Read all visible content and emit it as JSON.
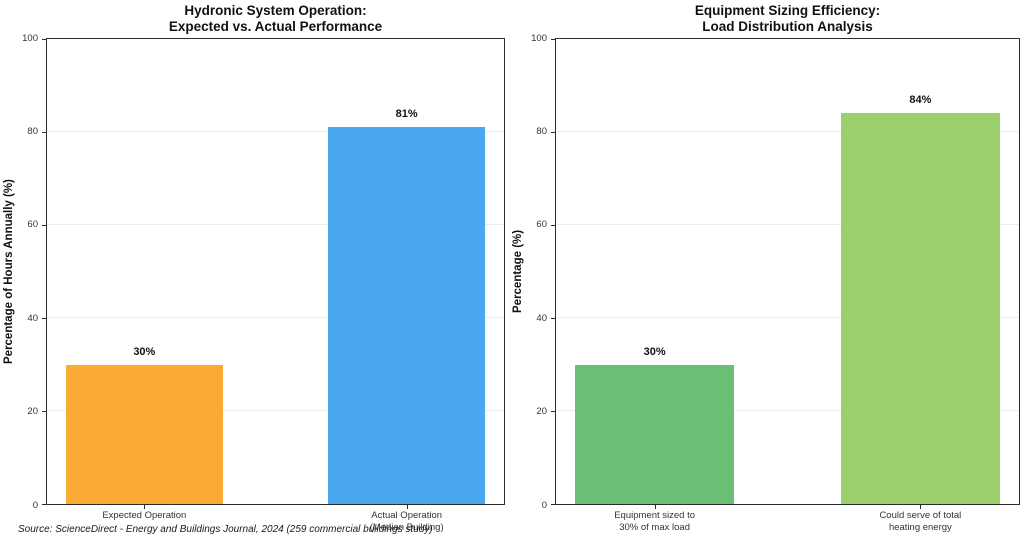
{
  "figure": {
    "source_note": "Source: ScienceDirect - Energy and Buildings Journal, 2024 (259 commercial buildings study)"
  },
  "chart_data": [
    {
      "type": "bar",
      "title_lines": [
        "Hydronic System Operation:",
        "Expected vs. Actual Performance"
      ],
      "ylabel": "Percentage of Hours Annually (%)",
      "xlabel": "",
      "ylim": [
        0,
        100
      ],
      "yticks": [
        0,
        20,
        40,
        60,
        80,
        100
      ],
      "grid": "horizontal-light",
      "legend": "none",
      "categories": [
        "Expected Operation",
        "Actual Operation\n(Median Building)"
      ],
      "values": [
        30,
        81
      ],
      "value_labels": [
        "30%",
        "81%"
      ],
      "bar_colors": [
        "#FBAB35",
        "#4BA8EE"
      ]
    },
    {
      "type": "bar",
      "title_lines": [
        "Equipment Sizing Efficiency:",
        "Load Distribution Analysis"
      ],
      "ylabel": "Percentage (%)",
      "xlabel": "",
      "ylim": [
        0,
        100
      ],
      "yticks": [
        0,
        20,
        40,
        60,
        80,
        100
      ],
      "grid": "horizontal-light",
      "legend": "none",
      "categories": [
        "Equipment sized to\n30% of max load",
        "Could serve of total\nheating energy"
      ],
      "values": [
        30,
        84
      ],
      "value_labels": [
        "30%",
        "84%"
      ],
      "bar_colors": [
        "#6BBF75",
        "#9CD06C"
      ]
    }
  ]
}
